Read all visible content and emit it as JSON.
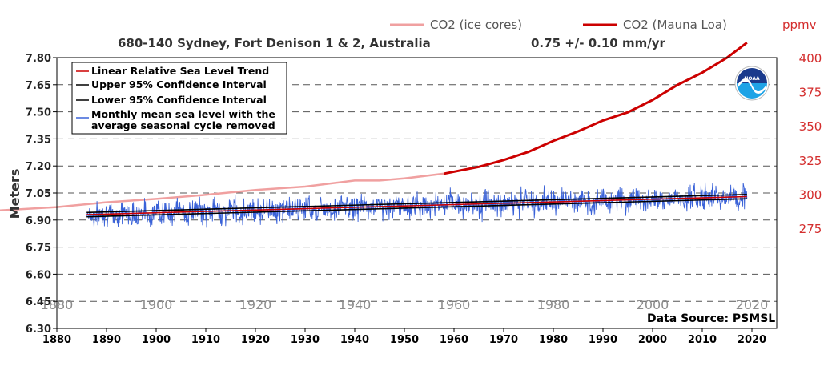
{
  "chart_data": {
    "type": "line",
    "title": "680-140 Sydney, Fort Denison 1 & 2, Australia",
    "trend_label": "0.75 +/-  0.10 mm/yr",
    "ylabel": "Meters",
    "co2_unit": "ppmv",
    "source": "Data Source: PSMSL",
    "xlim": [
      1880,
      2025
    ],
    "ylim": [
      6.3,
      7.8
    ],
    "x_ticks": [
      1880,
      1890,
      1900,
      1910,
      1920,
      1930,
      1940,
      1950,
      1960,
      1970,
      1980,
      1990,
      2000,
      2010,
      2020
    ],
    "x_ticks_co2": [
      1880,
      1900,
      1920,
      1940,
      1960,
      1980,
      2000,
      2020
    ],
    "y_ticks": [
      "6.30",
      "6.45",
      "6.60",
      "6.75",
      "6.90",
      "7.05",
      "7.20",
      "7.35",
      "7.50",
      "7.65",
      "7.80"
    ],
    "co2_ticks": [
      275,
      300,
      325,
      350,
      375,
      400
    ],
    "grid": true,
    "legend_position": "top-left",
    "legend": [
      {
        "label": "Linear Relative Sea Level Trend",
        "color": "#cc0000"
      },
      {
        "label": "Upper 95% Confidence Interval",
        "color": "#000000"
      },
      {
        "label": "Lower 95% Confidence Interval",
        "color": "#000000"
      },
      {
        "label": "Monthly mean sea level with the",
        "label2": "average seasonal cycle removed",
        "color": "#3a62d8"
      }
    ],
    "co2_legend": [
      {
        "label": "CO2 (ice cores)",
        "color": "#f0a0a0"
      },
      {
        "label": "CO2 (Mauna Loa)",
        "color": "#cc0000"
      }
    ],
    "series": [
      {
        "name": "Linear Relative Sea Level Trend",
        "x": [
          1886,
          2019
        ],
        "y": [
          6.93,
          7.03
        ]
      },
      {
        "name": "Upper 95% Confidence Interval",
        "x": [
          1886,
          2019
        ],
        "y": [
          6.942,
          7.042
        ]
      },
      {
        "name": "Lower 95% Confidence Interval",
        "x": [
          1886,
          2019
        ],
        "y": [
          6.918,
          7.018
        ]
      },
      {
        "name": "Monthly mean sea level with the average seasonal cycle removed",
        "x_range": [
          1886,
          2019
        ],
        "baseline": "trend",
        "amplitude": 0.06,
        "min": 6.82,
        "max": 7.15
      },
      {
        "name": "CO2 (ice cores)",
        "x": [
          1880,
          1890,
          1900,
          1910,
          1920,
          1930,
          1940,
          1945,
          1950,
          1958
        ],
        "y": [
          290.5,
          294,
          296.5,
          299.5,
          303,
          305.5,
          310,
          310,
          311.5,
          315
        ]
      },
      {
        "name": "CO2 (Mauna Loa)",
        "x": [
          1958,
          1965,
          1970,
          1975,
          1980,
          1985,
          1990,
          1995,
          2000,
          2005,
          2010,
          2015,
          2019
        ],
        "y": [
          315,
          320,
          325,
          331,
          339,
          346,
          354,
          360,
          369,
          380,
          389,
          400,
          411
        ]
      }
    ]
  }
}
